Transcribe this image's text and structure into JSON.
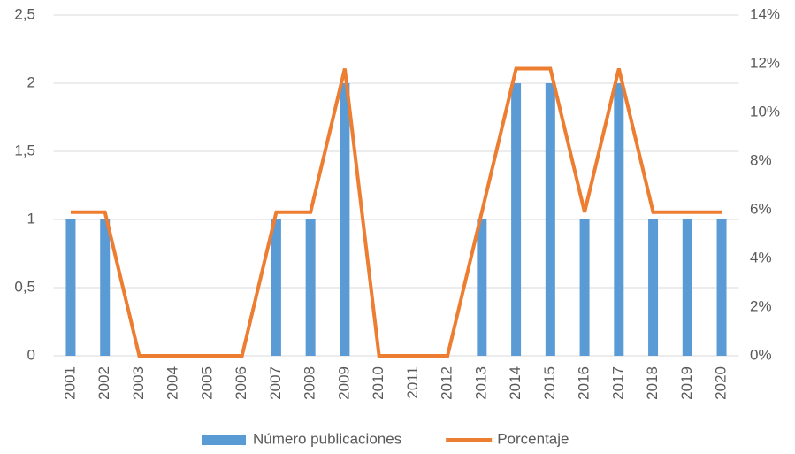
{
  "chart_data": {
    "type": "bar",
    "categories": [
      "2001",
      "2002",
      "2003",
      "2004",
      "2005",
      "2006",
      "2007",
      "2008",
      "2009",
      "2010",
      "2011",
      "2012",
      "2013",
      "2014",
      "2015",
      "2016",
      "2017",
      "2018",
      "2019",
      "2020"
    ],
    "series": [
      {
        "name": "Número publicaciones",
        "color": "#5b9bd5",
        "type": "bar",
        "values": [
          1,
          1,
          0,
          0,
          0,
          0,
          1,
          1,
          2,
          0,
          0,
          0,
          1,
          2,
          2,
          1,
          2,
          1,
          1,
          1
        ]
      },
      {
        "name": "Porcentaje",
        "color": "#ed7d31",
        "type": "line",
        "axis": "y2",
        "values": [
          5.9,
          5.9,
          0,
          0,
          0,
          0,
          5.9,
          5.9,
          11.8,
          0,
          0,
          0,
          5.9,
          11.8,
          11.8,
          5.9,
          11.8,
          5.9,
          5.9,
          5.9
        ]
      }
    ],
    "ylim": [
      0,
      2.5
    ],
    "yticks": [
      0,
      {
        "value": 0.5,
        "label": "0,5"
      },
      1,
      {
        "value": 1.5,
        "label": "1,5"
      },
      2,
      {
        "value": 2.5,
        "label": "2,5"
      }
    ],
    "y2lim": [
      0,
      14
    ],
    "y2ticks": [
      {
        "value": 0,
        "label": "0%"
      },
      {
        "value": 2,
        "label": "2%"
      },
      {
        "value": 4,
        "label": "4%"
      },
      {
        "value": 6,
        "label": "6%"
      },
      {
        "value": 8,
        "label": "8%"
      },
      {
        "value": 10,
        "label": "10%"
      },
      {
        "value": 12,
        "label": "12%"
      },
      {
        "value": 14,
        "label": "14%"
      }
    ],
    "grid": true,
    "legend": "bottom"
  }
}
